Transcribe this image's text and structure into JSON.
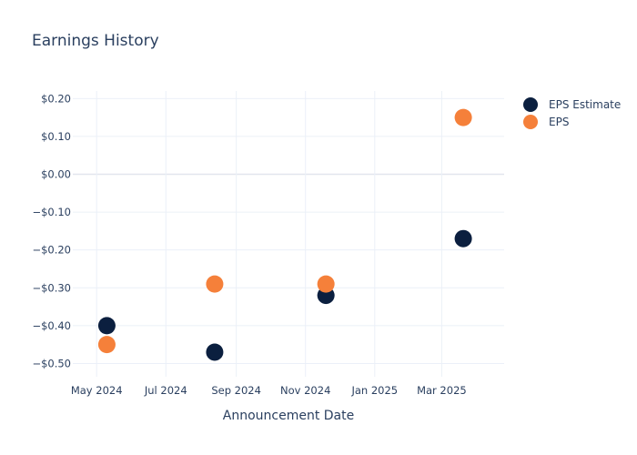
{
  "chart_data": {
    "type": "scatter",
    "title": "Earnings History",
    "xlabel": "Announcement Date",
    "ylabel": "",
    "xlim": [
      "2024-04-10",
      "2025-04-25"
    ],
    "ylim": [
      -0.535,
      0.22
    ],
    "x_ticks": [
      {
        "date": "2024-05-01",
        "label": "May 2024"
      },
      {
        "date": "2024-07-01",
        "label": "Jul 2024"
      },
      {
        "date": "2024-09-01",
        "label": "Sep 2024"
      },
      {
        "date": "2024-11-01",
        "label": "Nov 2024"
      },
      {
        "date": "2025-01-01",
        "label": "Jan 2025"
      },
      {
        "date": "2025-03-01",
        "label": "Mar 2025"
      }
    ],
    "y_ticks": [
      {
        "value": 0.2,
        "label": "$0.20"
      },
      {
        "value": 0.1,
        "label": "$0.10"
      },
      {
        "value": 0.0,
        "label": "$0.00"
      },
      {
        "value": -0.1,
        "label": "−$0.10"
      },
      {
        "value": -0.2,
        "label": "−$0.20"
      },
      {
        "value": -0.3,
        "label": "−$0.30"
      },
      {
        "value": -0.4,
        "label": "−$0.40"
      },
      {
        "value": -0.5,
        "label": "−$0.50"
      }
    ],
    "grid": true,
    "legend_position": "top-right",
    "series": [
      {
        "name": "EPS Estimate",
        "color": "#0b1f3f",
        "points": [
          {
            "x": "2024-05-10",
            "y": -0.4
          },
          {
            "x": "2024-08-13",
            "y": -0.47
          },
          {
            "x": "2024-11-19",
            "y": -0.32
          },
          {
            "x": "2025-03-20",
            "y": -0.17
          }
        ]
      },
      {
        "name": "EPS",
        "color": "#f5803a",
        "points": [
          {
            "x": "2024-05-10",
            "y": -0.45
          },
          {
            "x": "2024-08-13",
            "y": -0.29
          },
          {
            "x": "2024-11-19",
            "y": -0.29
          },
          {
            "x": "2025-03-20",
            "y": 0.15
          }
        ]
      }
    ]
  }
}
